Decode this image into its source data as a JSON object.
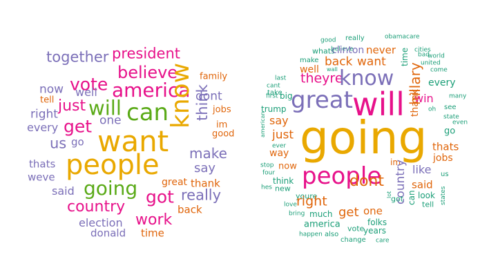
{
  "palette": {
    "purple": "#7b6fb8",
    "magenta": "#e7118a",
    "green": "#5aaa17",
    "gold": "#e9a800",
    "orange": "#e0650a",
    "teal": "#1a9e77"
  },
  "clouds": [
    {
      "words": [
        {
          "text": "together",
          "color": "purple"
        },
        {
          "text": "president",
          "color": "magenta"
        },
        {
          "text": "family",
          "color": "orange"
        },
        {
          "text": "believe",
          "color": "magenta"
        },
        {
          "text": "vote",
          "color": "magenta"
        },
        {
          "text": "now",
          "color": "purple"
        },
        {
          "text": "well",
          "color": "purple"
        },
        {
          "text": "america",
          "color": "magenta"
        },
        {
          "text": "dont",
          "color": "purple"
        },
        {
          "text": "tell",
          "color": "orange"
        },
        {
          "text": "just",
          "color": "magenta"
        },
        {
          "text": "will",
          "color": "green"
        },
        {
          "text": "can",
          "color": "green"
        },
        {
          "text": "jobs",
          "color": "orange"
        },
        {
          "text": "right",
          "color": "purple"
        },
        {
          "text": "one",
          "color": "purple"
        },
        {
          "text": "get",
          "color": "magenta"
        },
        {
          "text": "im",
          "color": "orange"
        },
        {
          "text": "every",
          "color": "purple"
        },
        {
          "text": "good",
          "color": "orange"
        },
        {
          "text": "want",
          "color": "gold"
        },
        {
          "text": "know",
          "color": "gold"
        },
        {
          "text": "think",
          "color": "purple"
        },
        {
          "text": "us",
          "color": "purple"
        },
        {
          "text": "go",
          "color": "purple"
        },
        {
          "text": "make",
          "color": "purple"
        },
        {
          "text": "thats",
          "color": "purple"
        },
        {
          "text": "people",
          "color": "gold"
        },
        {
          "text": "say",
          "color": "purple"
        },
        {
          "text": "weve",
          "color": "purple"
        },
        {
          "text": "great",
          "color": "orange"
        },
        {
          "text": "thank",
          "color": "orange"
        },
        {
          "text": "said",
          "color": "purple"
        },
        {
          "text": "going",
          "color": "green"
        },
        {
          "text": "really",
          "color": "purple"
        },
        {
          "text": "got",
          "color": "magenta"
        },
        {
          "text": "country",
          "color": "magenta"
        },
        {
          "text": "back",
          "color": "orange"
        },
        {
          "text": "work",
          "color": "magenta"
        },
        {
          "text": "election",
          "color": "purple"
        },
        {
          "text": "donald",
          "color": "purple"
        },
        {
          "text": "time",
          "color": "orange"
        }
      ]
    },
    {
      "words": [
        {
          "text": "good",
          "color": "teal"
        },
        {
          "text": "really",
          "color": "teal"
        },
        {
          "text": "obamacare",
          "color": "teal"
        },
        {
          "text": "believe",
          "color": "teal"
        },
        {
          "text": "whats",
          "color": "teal"
        },
        {
          "text": "clinton",
          "color": "purple"
        },
        {
          "text": "never",
          "color": "orange"
        },
        {
          "text": "cities",
          "color": "teal"
        },
        {
          "text": "bad",
          "color": "teal"
        },
        {
          "text": "world",
          "color": "teal"
        },
        {
          "text": "make",
          "color": "teal"
        },
        {
          "text": "back",
          "color": "orange"
        },
        {
          "text": "want",
          "color": "orange"
        },
        {
          "text": "united",
          "color": "teal"
        },
        {
          "text": "well",
          "color": "orange"
        },
        {
          "text": "wall",
          "color": "teal"
        },
        {
          "text": "come",
          "color": "teal"
        },
        {
          "text": "time",
          "color": "teal"
        },
        {
          "text": "last",
          "color": "teal"
        },
        {
          "text": "theyre",
          "color": "magenta"
        },
        {
          "text": "know",
          "color": "purple"
        },
        {
          "text": "cant",
          "color": "teal"
        },
        {
          "text": "every",
          "color": "teal"
        },
        {
          "text": "take",
          "color": "teal"
        },
        {
          "text": "first",
          "color": "teal"
        },
        {
          "text": "big",
          "color": "teal"
        },
        {
          "text": "great",
          "color": "purple"
        },
        {
          "text": "will",
          "color": "magenta"
        },
        {
          "text": "hillary",
          "color": "orange"
        },
        {
          "text": "many",
          "color": "teal"
        },
        {
          "text": "win",
          "color": "magenta"
        },
        {
          "text": "oh",
          "color": "teal"
        },
        {
          "text": "see",
          "color": "teal"
        },
        {
          "text": "trump",
          "color": "teal"
        },
        {
          "text": "thank",
          "color": "orange"
        },
        {
          "text": "state",
          "color": "teal"
        },
        {
          "text": "say",
          "color": "orange"
        },
        {
          "text": "even",
          "color": "teal"
        },
        {
          "text": "go",
          "color": "teal"
        },
        {
          "text": "american",
          "color": "teal"
        },
        {
          "text": "just",
          "color": "orange"
        },
        {
          "text": "going",
          "color": "gold"
        },
        {
          "text": "thats",
          "color": "orange"
        },
        {
          "text": "ever",
          "color": "teal"
        },
        {
          "text": "way",
          "color": "orange"
        },
        {
          "text": "jobs",
          "color": "orange"
        },
        {
          "text": "stop",
          "color": "teal"
        },
        {
          "text": "now",
          "color": "orange"
        },
        {
          "text": "im",
          "color": "orange"
        },
        {
          "text": "like",
          "color": "purple"
        },
        {
          "text": "four",
          "color": "teal"
        },
        {
          "text": "people",
          "color": "magenta"
        },
        {
          "text": "us",
          "color": "teal"
        },
        {
          "text": "think",
          "color": "teal"
        },
        {
          "text": "dont",
          "color": "orange"
        },
        {
          "text": "hes",
          "color": "teal"
        },
        {
          "text": "new",
          "color": "teal"
        },
        {
          "text": "country",
          "color": "purple"
        },
        {
          "text": "said",
          "color": "orange"
        },
        {
          "text": "youre",
          "color": "teal"
        },
        {
          "text": "right",
          "color": "orange"
        },
        {
          "text": "look",
          "color": "teal"
        },
        {
          "text": "lot",
          "color": "teal"
        },
        {
          "text": "can",
          "color": "teal"
        },
        {
          "text": "states",
          "color": "teal"
        },
        {
          "text": "love",
          "color": "teal"
        },
        {
          "text": "get",
          "color": "orange"
        },
        {
          "text": "one",
          "color": "orange"
        },
        {
          "text": "got",
          "color": "teal"
        },
        {
          "text": "tell",
          "color": "teal"
        },
        {
          "text": "bring",
          "color": "teal"
        },
        {
          "text": "much",
          "color": "teal"
        },
        {
          "text": "america",
          "color": "teal"
        },
        {
          "text": "folks",
          "color": "teal"
        },
        {
          "text": "vote",
          "color": "teal"
        },
        {
          "text": "years",
          "color": "teal"
        },
        {
          "text": "happen",
          "color": "teal"
        },
        {
          "text": "also",
          "color": "teal"
        },
        {
          "text": "change",
          "color": "teal"
        },
        {
          "text": "care",
          "color": "teal"
        }
      ]
    }
  ]
}
